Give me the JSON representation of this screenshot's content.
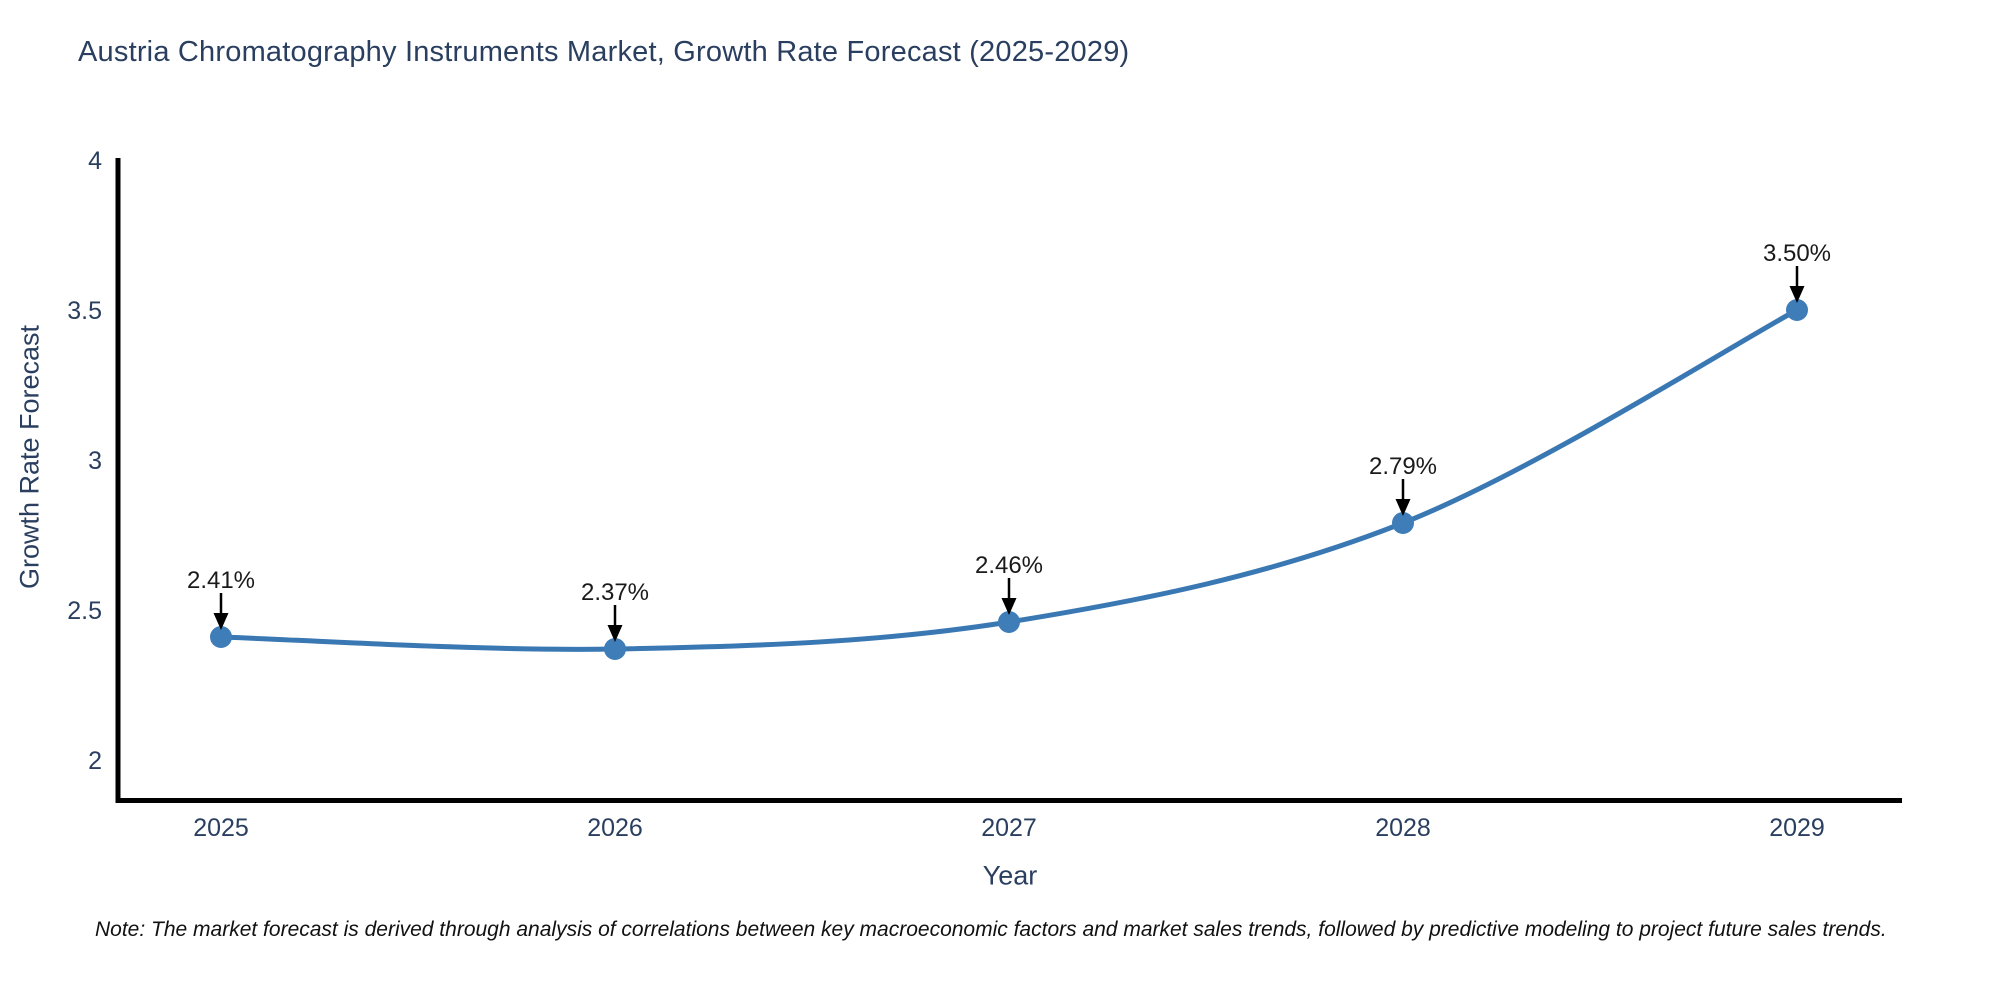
{
  "chart_data": {
    "type": "line",
    "title": "Austria Chromatography Instruments Market, Growth Rate Forecast (2025-2029)",
    "xlabel": "Year",
    "ylabel": "Growth Rate Forecast",
    "categories": [
      "2025",
      "2026",
      "2027",
      "2028",
      "2029"
    ],
    "series": [
      {
        "name": "Growth Rate Forecast",
        "values": [
          2.41,
          2.37,
          2.46,
          2.79,
          3.5
        ],
        "point_labels": [
          "2.41%",
          "2.37%",
          "2.46%",
          "2.79%",
          "3.50%"
        ]
      }
    ],
    "yticks": [
      "2",
      "2.5",
      "3",
      "3.5",
      "4"
    ],
    "ytick_values": [
      2,
      2.5,
      3,
      3.5,
      4
    ],
    "ylim": [
      1.86,
      4.0
    ],
    "grid": false,
    "legend": false,
    "line_style": "smooth-spline",
    "colors": {
      "line": "#3a78b3",
      "marker": "#3f7db8",
      "axis": "#000000",
      "tick_label": "#2a3f5f",
      "title": "#2a3f5f",
      "annotation_text": "#1a1a1a",
      "annotation_arrow": "#000000",
      "background": "#ffffff"
    }
  },
  "footnote": "Note: The market forecast is derived through analysis of correlations between key macroeconomic factors and market sales trends, followed by predictive modeling to project future sales trends."
}
